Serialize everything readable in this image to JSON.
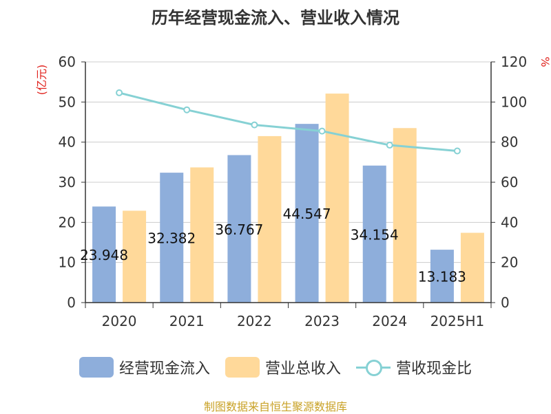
{
  "title": "历年经营现金流入、营业收入情况",
  "source": "制图数据来自恒生聚源数据库",
  "colors": {
    "cash_inflow": "#8eaedb",
    "revenue": "#ffd99a",
    "ratio": "#86d1d4",
    "axis_unit": "#e0201b"
  },
  "chart_data": {
    "type": "bar",
    "title": "历年经营现金流入、营业收入情况",
    "categories": [
      "2020",
      "2021",
      "2022",
      "2023",
      "2024",
      "2025H1"
    ],
    "y_left": {
      "unit": "(亿元)",
      "range": [
        0,
        60
      ],
      "ticks": [
        "0",
        "10",
        "20",
        "30",
        "40",
        "50",
        "60"
      ]
    },
    "y_right": {
      "unit": "%",
      "range": [
        0,
        120
      ],
      "ticks": [
        "0",
        "20",
        "40",
        "60",
        "80",
        "100",
        "120"
      ]
    },
    "grid": true,
    "legend_position": "bottom",
    "series": [
      {
        "name": "经营现金流入",
        "type": "bar",
        "axis": "left",
        "values": [
          23.948,
          32.382,
          36.767,
          44.547,
          34.154,
          13.183
        ],
        "labels": [
          "23.948",
          "32.382",
          "36.767",
          "44.547",
          "34.154",
          "13.183"
        ]
      },
      {
        "name": "营业总收入",
        "type": "bar",
        "axis": "left",
        "values": [
          22.9,
          33.7,
          41.5,
          52.1,
          43.5,
          17.4
        ]
      },
      {
        "name": "营收现金比",
        "type": "line",
        "axis": "right",
        "values": [
          104.6,
          96.1,
          88.6,
          85.5,
          78.5,
          75.6
        ]
      }
    ]
  }
}
